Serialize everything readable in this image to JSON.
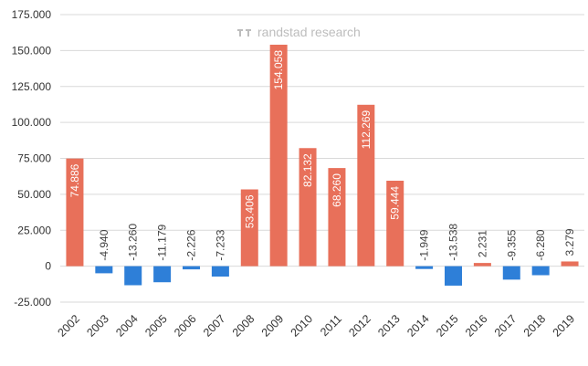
{
  "watermark": {
    "text": "randstad research",
    "logo_icon": "randstad-logo-icon"
  },
  "chart_data": {
    "type": "bar",
    "categories": [
      "2002",
      "2003",
      "2004",
      "2005",
      "2006",
      "2007",
      "2008",
      "2009",
      "2010",
      "2011",
      "2012",
      "2013",
      "2014",
      "2015",
      "2016",
      "2017",
      "2018",
      "2019"
    ],
    "values": [
      74886,
      -4940,
      -13260,
      -11179,
      -2226,
      -7233,
      53406,
      154058,
      82132,
      68260,
      112269,
      59444,
      -1949,
      -13538,
      2231,
      -9355,
      -6280,
      3279
    ],
    "data_labels": [
      "74.886",
      "-4.940",
      "-13.260",
      "-11.179",
      "-2.226",
      "-7.233",
      "53.406",
      "154.058",
      "82.132",
      "68.260",
      "112.269",
      "59.444",
      "-1.949",
      "-13.538",
      "2.231",
      "-9.355",
      "-6.280",
      "3.279"
    ],
    "ylim": [
      -25000,
      175000
    ],
    "yticks": [
      -25000,
      0,
      25000,
      50000,
      75000,
      100000,
      125000,
      150000,
      175000
    ],
    "ytick_labels": [
      "-25.000",
      "0",
      "25.000",
      "50.000",
      "75.000",
      "100.000",
      "125.000",
      "150.000",
      "175.000"
    ],
    "grid": true,
    "colors": {
      "positive": "#e8705a",
      "negative": "#2e7fd8",
      "grid": "#d9d9d9",
      "axis_text": "#333333",
      "label_inside": "#ffffff",
      "label_outside": "#404040",
      "watermark": "#bdbdbd"
    }
  }
}
